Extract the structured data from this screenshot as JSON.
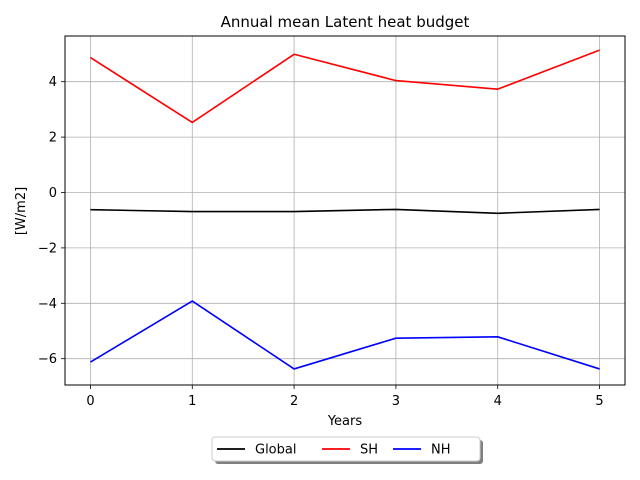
{
  "chart_data": {
    "type": "line",
    "title": "Annual mean Latent heat budget",
    "xlabel": "Years",
    "ylabel": "[W/m2]",
    "x": [
      0,
      1,
      2,
      3,
      4,
      5
    ],
    "xlim": [
      -0.25,
      5.25
    ],
    "ylim": [
      -6.95,
      5.65
    ],
    "xticks": [
      0,
      1,
      2,
      3,
      4,
      5
    ],
    "yticks": [
      -6,
      -4,
      -2,
      0,
      2,
      4
    ],
    "grid": true,
    "legend_position": "bottom-center",
    "series": [
      {
        "name": "Global",
        "color": "#000000",
        "values": [
          -0.62,
          -0.69,
          -0.69,
          -0.61,
          -0.75,
          -0.61
        ]
      },
      {
        "name": "SH",
        "color": "#ff0000",
        "values": [
          4.87,
          2.53,
          4.99,
          4.04,
          3.73,
          5.14
        ]
      },
      {
        "name": "NH",
        "color": "#0000ff",
        "values": [
          -6.12,
          -3.92,
          -6.37,
          -5.26,
          -5.21,
          -6.37
        ]
      }
    ]
  }
}
